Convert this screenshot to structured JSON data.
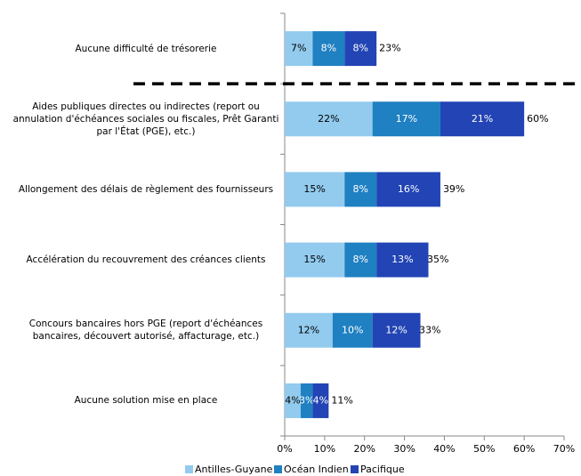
{
  "chart_data": {
    "type": "stacked_bar_horizontal",
    "categories": [
      "Aucune difficulté de trésorerie",
      "Aides publiques directes ou indirectes (report ou annulation d'échéances sociales ou fiscales, Prêt Garanti par l'État (PGE), etc.)",
      "Allongement des délais de règlement des fournisseurs",
      "Accélération du recouvrement des créances clients",
      "Concours bancaires hors PGE (report d'échéances bancaires, découvert autorisé, affacturage, etc.)",
      "Aucune solution mise en place"
    ],
    "series": [
      {
        "name": "Antilles-Guyane",
        "color": "#92cbee",
        "values": [
          7,
          22,
          15,
          15,
          12,
          4
        ],
        "value_labels": [
          "7%",
          "22%",
          "15%",
          "15%",
          "12%",
          "4%"
        ]
      },
      {
        "name": "Océan Indien",
        "color": "#1f80c2",
        "values": [
          8,
          17,
          8,
          8,
          10,
          3
        ],
        "value_labels": [
          "8%",
          "17%",
          "8%",
          "8%",
          "10%",
          "3%"
        ]
      },
      {
        "name": "Pacifique",
        "color": "#2244b4",
        "values": [
          8,
          21,
          16,
          13,
          12,
          4
        ],
        "value_labels": [
          "8%",
          "21%",
          "16%",
          "13%",
          "12%",
          "4%"
        ]
      }
    ],
    "totals": {
      "values": [
        23,
        60,
        39,
        35,
        33,
        11
      ],
      "value_labels": [
        "23%",
        "60%",
        "39%",
        "35%",
        "33%",
        "11%"
      ]
    },
    "xlim": [
      0,
      70
    ],
    "xticks": [
      {
        "value": 0,
        "label": "0%"
      },
      {
        "value": 10,
        "label": "10%"
      },
      {
        "value": 20,
        "label": "20%"
      },
      {
        "value": 30,
        "label": "30%"
      },
      {
        "value": 40,
        "label": "40%"
      },
      {
        "value": 50,
        "label": "50%"
      },
      {
        "value": 60,
        "label": "60%"
      },
      {
        "value": 70,
        "label": "70%"
      }
    ],
    "legend": "bottom"
  }
}
